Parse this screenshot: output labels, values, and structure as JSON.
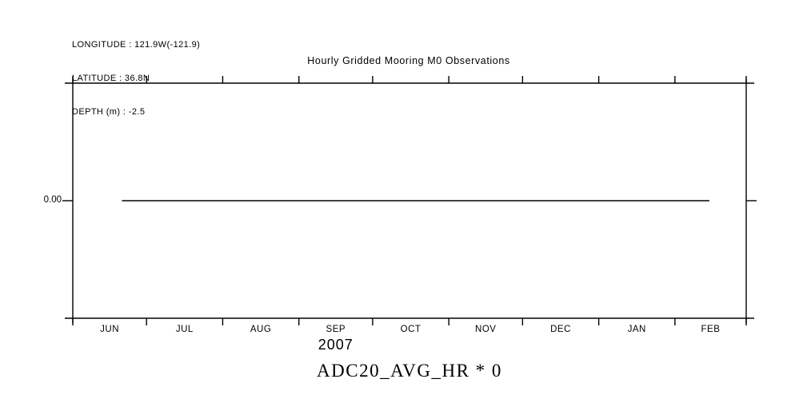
{
  "meta": {
    "header_lines": [
      "LONGITUDE : 121.9W(-121.9)",
      "LATITUDE : 36.8N",
      "DEPTH (m) : -2.5"
    ]
  },
  "colors": {
    "background": "#ffffff",
    "foreground": "#000000"
  },
  "chart_data": {
    "type": "line",
    "title": "Hourly Gridded Mooring M0 Observations",
    "footer_label": "ADC20_AVG_HR * 0",
    "x_axis": {
      "start_date": "2007-06-01",
      "end_date": "2008-03-01",
      "tick_labels": [
        "JUN",
        "JUL",
        "AUG",
        "SEP",
        "OCT",
        "NOV",
        "DEC",
        "JAN",
        "FEB"
      ],
      "year_label": "2007"
    },
    "y_axis": {
      "tick_labels": [
        "0.00"
      ],
      "tick_values": [
        0
      ]
    },
    "grid": false,
    "legend": false,
    "series": [
      {
        "name": "ADC20_AVG_HR * 0",
        "value": 0,
        "start": "2007-06-21",
        "end": "2008-02-15",
        "color": "#000000"
      }
    ]
  }
}
